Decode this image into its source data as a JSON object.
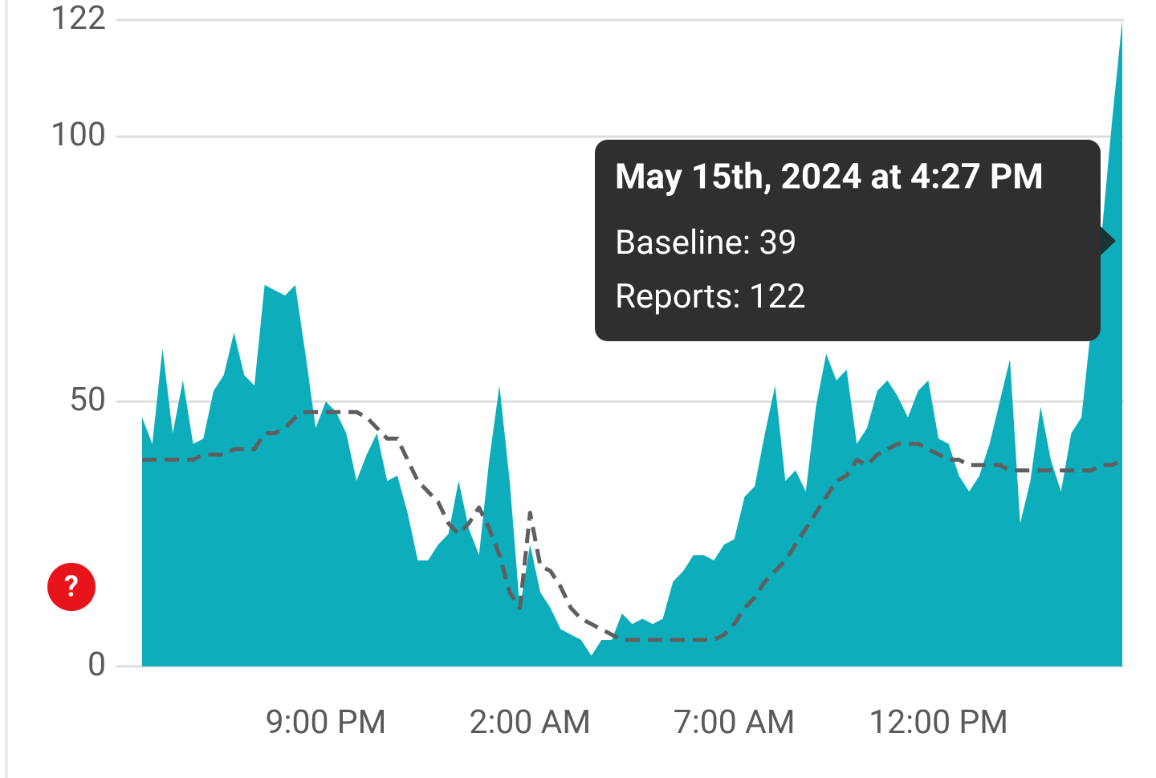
{
  "chart_data": {
    "type": "area",
    "categories": [
      null,
      null,
      null,
      null,
      null,
      null,
      null,
      null,
      null,
      null,
      null,
      null,
      null,
      null,
      null,
      null,
      null,
      null,
      "9:00 PM",
      null,
      null,
      null,
      null,
      null,
      null,
      null,
      null,
      null,
      null,
      null,
      null,
      null,
      null,
      null,
      null,
      null,
      null,
      null,
      "2:00 AM",
      null,
      null,
      null,
      null,
      null,
      null,
      null,
      null,
      null,
      null,
      null,
      null,
      null,
      null,
      null,
      null,
      null,
      null,
      null,
      "7:00 AM",
      null,
      null,
      null,
      null,
      null,
      null,
      null,
      null,
      null,
      null,
      null,
      null,
      null,
      null,
      null,
      null,
      null,
      null,
      null,
      "12:00 PM",
      null,
      null,
      null,
      null,
      null,
      null,
      null,
      null,
      null,
      null,
      null,
      null,
      null,
      null,
      null,
      null,
      null,
      null
    ],
    "series": [
      {
        "name": "Reports",
        "type": "area",
        "color": "#0dadbb",
        "values": [
          47,
          42,
          60,
          44,
          54,
          42,
          43,
          52,
          55,
          63,
          55,
          53,
          72,
          71,
          70,
          72,
          59,
          45,
          50,
          48,
          44,
          35,
          40,
          44,
          35,
          36,
          29,
          20,
          20,
          23,
          25,
          35,
          26,
          21,
          39,
          53,
          35,
          11,
          23,
          14,
          11,
          7,
          6,
          5,
          2,
          5,
          5,
          10,
          8,
          9,
          8,
          9,
          16,
          18,
          21,
          21,
          20,
          23,
          24,
          32,
          34,
          44,
          53,
          35,
          37,
          33,
          49,
          59,
          54,
          56,
          42,
          45,
          52,
          54,
          51,
          47,
          52,
          54,
          43,
          42,
          36,
          33,
          36,
          42,
          50,
          58,
          27,
          35,
          49,
          39,
          33,
          44,
          47,
          65,
          82,
          103,
          122
        ]
      },
      {
        "name": "Baseline",
        "type": "line",
        "dashed": true,
        "color": "#5f5f5f",
        "values": [
          39,
          39,
          39,
          39,
          39,
          39,
          40,
          40,
          40,
          41,
          41,
          41,
          44,
          44,
          45,
          47,
          48,
          48,
          48,
          48,
          48,
          48,
          47,
          45,
          43,
          43,
          39,
          35,
          33,
          31,
          27,
          25,
          27,
          30,
          26,
          21,
          14,
          11,
          29,
          19,
          18,
          15,
          11,
          9,
          8,
          7,
          6,
          5,
          5,
          5,
          5,
          5,
          5,
          5,
          5,
          5,
          5,
          6,
          8,
          11,
          13,
          16,
          18,
          20,
          23,
          26,
          29,
          32,
          35,
          36,
          39,
          38,
          40,
          41,
          42,
          42,
          42,
          41,
          40,
          39,
          39,
          38,
          38,
          38,
          38,
          37,
          37,
          37,
          37,
          37,
          37,
          37,
          37,
          37,
          38,
          38,
          39
        ]
      }
    ],
    "ylim": [
      0,
      122
    ],
    "yticks": [
      0,
      50,
      100,
      122
    ],
    "grid": true,
    "tooltip": {
      "title": "May 15th, 2024 at 4:27 PM",
      "lines": [
        "Baseline: 39",
        "Reports: 122"
      ]
    },
    "help_icon": "?"
  }
}
